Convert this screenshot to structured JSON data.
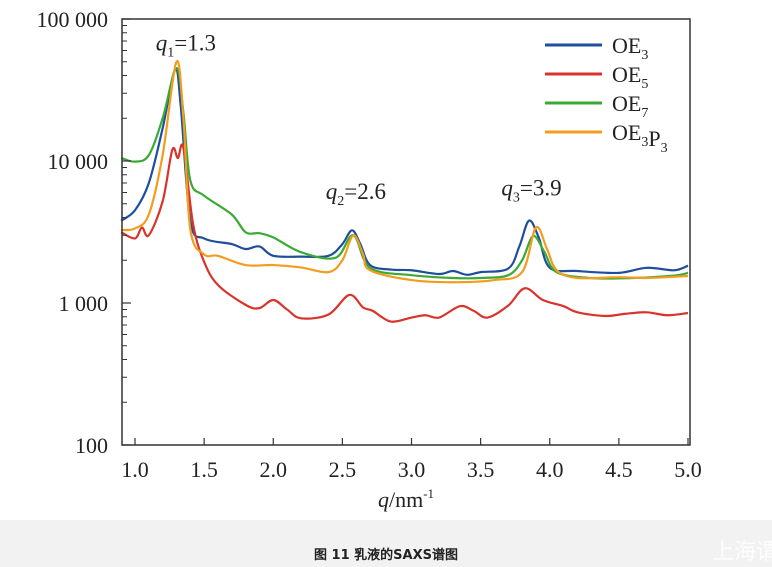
{
  "chart_data": {
    "type": "line",
    "title": "",
    "xlabel": "q/nm-1",
    "ylabel": "",
    "xlim": [
      0.9,
      5.0
    ],
    "ylim": [
      100,
      100000
    ],
    "yscale": "log",
    "grid": false,
    "legend_position": "top-right",
    "xticks": [
      "1.0",
      "1.5",
      "2.0",
      "2.5",
      "3.0",
      "3.5",
      "4.0",
      "4.5",
      "5.0"
    ],
    "yticks": [
      {
        "v": 100,
        "label": "100"
      },
      {
        "v": 1000,
        "label": "1 000"
      },
      {
        "v": 10000,
        "label": "10 000"
      },
      {
        "v": 100000,
        "label": "100 000"
      }
    ],
    "annotations": [
      {
        "text": "q1=1.3",
        "q": 1.15,
        "y": 60000
      },
      {
        "text": "q2=2.6",
        "q": 2.38,
        "y": 5400
      },
      {
        "text": "q3=3.9",
        "q": 3.65,
        "y": 5700
      }
    ],
    "series": [
      {
        "name": "OE3",
        "color": "#1f4e9c",
        "points": [
          [
            0.9,
            3800
          ],
          [
            1.0,
            4500
          ],
          [
            1.1,
            7000
          ],
          [
            1.2,
            17000
          ],
          [
            1.29,
            44000
          ],
          [
            1.33,
            25000
          ],
          [
            1.4,
            3800
          ],
          [
            1.5,
            2850
          ],
          [
            1.7,
            2600
          ],
          [
            1.8,
            2400
          ],
          [
            1.9,
            2500
          ],
          [
            2.0,
            2150
          ],
          [
            2.2,
            2120
          ],
          [
            2.4,
            2150
          ],
          [
            2.5,
            2600
          ],
          [
            2.57,
            3250
          ],
          [
            2.63,
            2600
          ],
          [
            2.7,
            1850
          ],
          [
            2.85,
            1720
          ],
          [
            3.0,
            1700
          ],
          [
            3.2,
            1600
          ],
          [
            3.3,
            1680
          ],
          [
            3.4,
            1580
          ],
          [
            3.5,
            1650
          ],
          [
            3.7,
            1750
          ],
          [
            3.78,
            2500
          ],
          [
            3.85,
            3800
          ],
          [
            3.92,
            2900
          ],
          [
            4.0,
            1770
          ],
          [
            4.2,
            1680
          ],
          [
            4.5,
            1630
          ],
          [
            4.7,
            1770
          ],
          [
            4.9,
            1700
          ],
          [
            5.0,
            1830
          ]
        ]
      },
      {
        "name": "OE5",
        "color": "#d9342b",
        "points": [
          [
            0.9,
            3150
          ],
          [
            1.0,
            2850
          ],
          [
            1.05,
            3400
          ],
          [
            1.1,
            3000
          ],
          [
            1.2,
            5200
          ],
          [
            1.27,
            12000
          ],
          [
            1.31,
            10500
          ],
          [
            1.35,
            12400
          ],
          [
            1.42,
            3600
          ],
          [
            1.5,
            1950
          ],
          [
            1.6,
            1340
          ],
          [
            1.8,
            970
          ],
          [
            1.9,
            920
          ],
          [
            2.0,
            1050
          ],
          [
            2.1,
            900
          ],
          [
            2.2,
            780
          ],
          [
            2.4,
            830
          ],
          [
            2.55,
            1140
          ],
          [
            2.65,
            930
          ],
          [
            2.72,
            880
          ],
          [
            2.85,
            740
          ],
          [
            3.0,
            790
          ],
          [
            3.1,
            820
          ],
          [
            3.2,
            790
          ],
          [
            3.35,
            950
          ],
          [
            3.45,
            880
          ],
          [
            3.55,
            790
          ],
          [
            3.7,
            960
          ],
          [
            3.82,
            1270
          ],
          [
            3.95,
            1050
          ],
          [
            4.1,
            950
          ],
          [
            4.2,
            860
          ],
          [
            4.4,
            810
          ],
          [
            4.55,
            840
          ],
          [
            4.7,
            860
          ],
          [
            4.85,
            820
          ],
          [
            5.0,
            850
          ]
        ]
      },
      {
        "name": "OE7",
        "color": "#3aaa35",
        "points": [
          [
            0.9,
            10500
          ],
          [
            1.0,
            9900
          ],
          [
            1.1,
            11000
          ],
          [
            1.2,
            20000
          ],
          [
            1.3,
            45000
          ],
          [
            1.35,
            22000
          ],
          [
            1.4,
            7300
          ],
          [
            1.5,
            5700
          ],
          [
            1.7,
            4200
          ],
          [
            1.8,
            3150
          ],
          [
            1.9,
            3100
          ],
          [
            2.0,
            2900
          ],
          [
            2.2,
            2280
          ],
          [
            2.45,
            2080
          ],
          [
            2.58,
            3000
          ],
          [
            2.7,
            1770
          ],
          [
            3.0,
            1570
          ],
          [
            3.3,
            1500
          ],
          [
            3.5,
            1500
          ],
          [
            3.7,
            1570
          ],
          [
            3.8,
            2000
          ],
          [
            3.88,
            2960
          ],
          [
            3.96,
            2300
          ],
          [
            4.05,
            1650
          ],
          [
            4.3,
            1500
          ],
          [
            4.6,
            1500
          ],
          [
            4.9,
            1560
          ],
          [
            5.0,
            1630
          ]
        ]
      },
      {
        "name": "OE3P3",
        "color": "#f39c1e",
        "points": [
          [
            0.9,
            3270
          ],
          [
            1.0,
            3350
          ],
          [
            1.1,
            4200
          ],
          [
            1.2,
            11000
          ],
          [
            1.3,
            50000
          ],
          [
            1.35,
            20000
          ],
          [
            1.4,
            3300
          ],
          [
            1.5,
            2200
          ],
          [
            1.6,
            2150
          ],
          [
            1.8,
            1850
          ],
          [
            2.0,
            1850
          ],
          [
            2.2,
            1780
          ],
          [
            2.4,
            1650
          ],
          [
            2.5,
            2000
          ],
          [
            2.58,
            3000
          ],
          [
            2.65,
            2200
          ],
          [
            2.7,
            1700
          ],
          [
            3.0,
            1450
          ],
          [
            3.3,
            1400
          ],
          [
            3.6,
            1450
          ],
          [
            3.8,
            1650
          ],
          [
            3.9,
            3400
          ],
          [
            3.98,
            2400
          ],
          [
            4.05,
            1700
          ],
          [
            4.2,
            1500
          ],
          [
            4.5,
            1520
          ],
          [
            4.7,
            1500
          ],
          [
            5.0,
            1550
          ]
        ]
      }
    ]
  },
  "caption": "图 11   乳液的SAXS谱图",
  "watermark": "上海谓"
}
